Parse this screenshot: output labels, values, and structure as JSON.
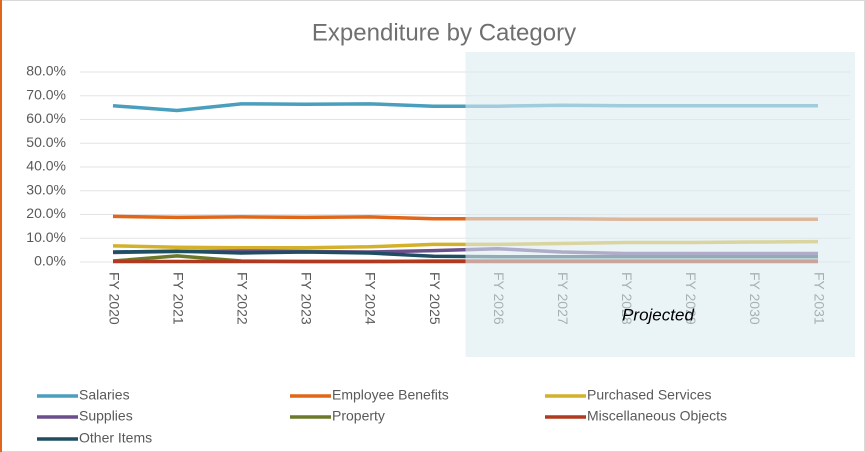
{
  "chart_data": {
    "type": "line",
    "title": "Expenditure by Category",
    "categories": [
      "FY 2020",
      "FY 2021",
      "FY 2022",
      "FY 2023",
      "FY 2024",
      "FY 2025",
      "FY 2026",
      "FY 2027",
      "FY 2028",
      "FY 2029",
      "FY 2030",
      "FY 2031"
    ],
    "series": [
      {
        "name": "Salaries",
        "color": "#4a9ebe",
        "values": [
          65.8,
          63.8,
          66.6,
          66.4,
          66.6,
          65.6,
          65.6,
          66.0,
          65.8,
          65.8,
          65.8,
          65.8
        ]
      },
      {
        "name": "Employee Benefits",
        "color": "#e0661a",
        "values": [
          19.2,
          18.8,
          19.0,
          18.8,
          19.0,
          18.2,
          18.2,
          18.2,
          18.0,
          18.0,
          18.0,
          18.0
        ]
      },
      {
        "name": "Purchased Services",
        "color": "#d4b12a",
        "values": [
          6.8,
          6.2,
          6.0,
          6.0,
          6.4,
          7.4,
          7.4,
          7.8,
          8.2,
          8.2,
          8.4,
          8.6
        ]
      },
      {
        "name": "Supplies",
        "color": "#6a4f8c",
        "values": [
          4.0,
          4.4,
          4.6,
          4.4,
          4.2,
          4.8,
          5.6,
          4.2,
          3.6,
          3.6,
          3.6,
          3.6
        ]
      },
      {
        "name": "Property",
        "color": "#6b7a2a",
        "values": [
          0.4,
          2.6,
          0.4,
          0.2,
          0.2,
          0.4,
          0.4,
          0.4,
          0.4,
          0.4,
          0.4,
          0.4
        ]
      },
      {
        "name": "Miscellaneous Objects",
        "color": "#b03a1f",
        "values": [
          0.2,
          0.2,
          0.2,
          0.2,
          0.2,
          0.2,
          0.2,
          0.2,
          0.2,
          0.2,
          0.2,
          0.2
        ]
      },
      {
        "name": "Other Items",
        "color": "#1f4e63",
        "values": [
          4.2,
          4.6,
          3.8,
          4.2,
          3.8,
          2.4,
          2.2,
          2.2,
          2.2,
          2.2,
          2.2,
          2.2
        ]
      }
    ],
    "ylim": [
      0,
      80
    ],
    "yticks": [
      {
        "value": 0,
        "label": "0.0%"
      },
      {
        "value": 10,
        "label": "10.0%"
      },
      {
        "value": 20,
        "label": "20.0%"
      },
      {
        "value": 30,
        "label": "30.0%"
      },
      {
        "value": 40,
        "label": "40.0%"
      },
      {
        "value": 50,
        "label": "50.0%"
      },
      {
        "value": 60,
        "label": "60.0%"
      },
      {
        "value": 70,
        "label": "70.0%"
      },
      {
        "value": 80,
        "label": "80.0%"
      }
    ],
    "grid": true,
    "annotation": "Projected"
  }
}
